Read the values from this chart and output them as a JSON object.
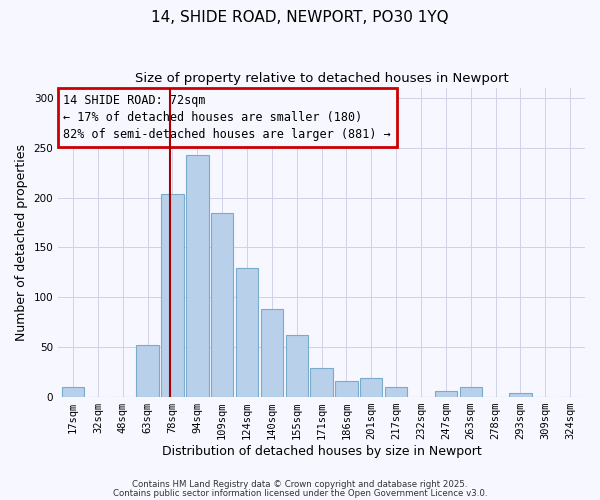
{
  "title": "14, SHIDE ROAD, NEWPORT, PO30 1YQ",
  "subtitle": "Size of property relative to detached houses in Newport",
  "xlabel": "Distribution of detached houses by size in Newport",
  "ylabel": "Number of detached properties",
  "bar_labels": [
    "17sqm",
    "32sqm",
    "48sqm",
    "63sqm",
    "78sqm",
    "94sqm",
    "109sqm",
    "124sqm",
    "140sqm",
    "155sqm",
    "171sqm",
    "186sqm",
    "201sqm",
    "217sqm",
    "232sqm",
    "247sqm",
    "263sqm",
    "278sqm",
    "293sqm",
    "309sqm",
    "324sqm"
  ],
  "bar_values": [
    10,
    0,
    0,
    52,
    204,
    243,
    184,
    129,
    88,
    62,
    29,
    16,
    19,
    10,
    0,
    6,
    10,
    0,
    4,
    0,
    0
  ],
  "bar_color": "#b8d0ea",
  "bar_edge_color": "#7aabcc",
  "vline_color": "#aa0000",
  "annotation_title": "14 SHIDE ROAD: 72sqm",
  "annotation_line1": "← 17% of detached houses are smaller (180)",
  "annotation_line2": "82% of semi-detached houses are larger (881) →",
  "annotation_box_color": "#cc0000",
  "ylim": [
    0,
    310
  ],
  "yticks": [
    0,
    50,
    100,
    150,
    200,
    250,
    300
  ],
  "background_color": "#f7f7ff",
  "grid_color": "#d0d0e8",
  "footnote1": "Contains HM Land Registry data © Crown copyright and database right 2025.",
  "footnote2": "Contains public sector information licensed under the Open Government Licence v3.0.",
  "title_fontsize": 11,
  "subtitle_fontsize": 9.5,
  "label_fontsize": 9,
  "tick_fontsize": 7.5,
  "annotation_fontsize": 8.5
}
